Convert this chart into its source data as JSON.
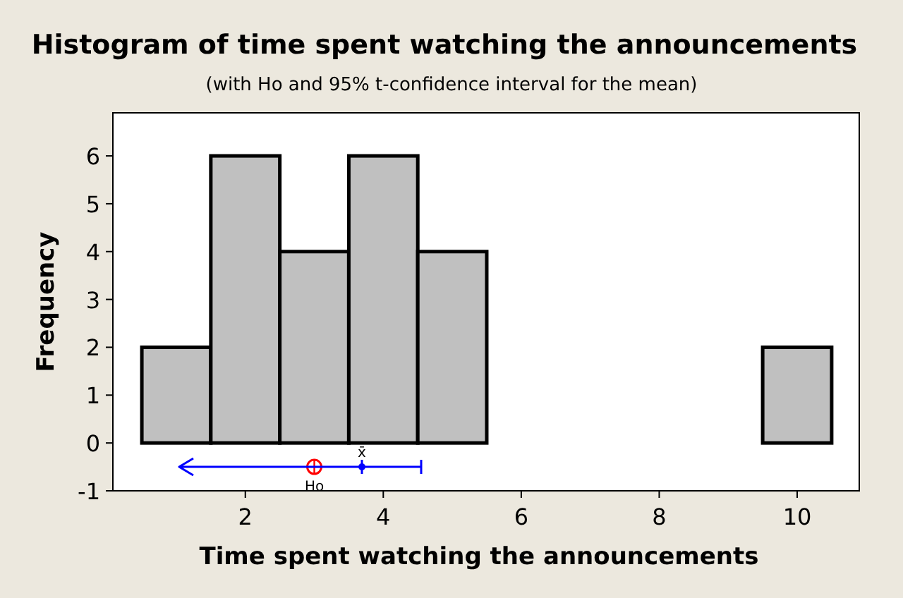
{
  "chart_data": {
    "type": "histogram",
    "title": "Histogram of time spent watching the announcements",
    "subtitle": "(with Ho and 95% t-confidence interval for the mean)",
    "xlabel": "Time spent watching the announcements",
    "ylabel": "Frequency",
    "bins": [
      0.5,
      1.5,
      2.5,
      3.5,
      4.5,
      5.5,
      6.5,
      7.5,
      8.5,
      9.5,
      10.5
    ],
    "values": [
      2,
      6,
      4,
      6,
      4,
      0,
      0,
      0,
      0,
      2
    ],
    "color": "#c0c0c0",
    "series": [
      {
        "type": "scatter",
        "name": "Ho",
        "color": "#ff0000",
        "marker": "circle",
        "x": [
          3
        ],
        "values": [
          -0.5
        ]
      },
      {
        "type": "scatter",
        "name": "x̄",
        "color": "#0000ff",
        "x": [
          3.69
        ],
        "values": [
          -0.5
        ]
      }
    ],
    "xlim": [
      0.08,
      10.9
    ],
    "ylim": [
      -1,
      6.9
    ],
    "xticks": [
      2,
      4,
      6,
      8,
      10
    ],
    "yticks": [
      -1,
      0,
      1,
      2,
      3,
      4,
      5,
      6
    ],
    "grid": false
  }
}
